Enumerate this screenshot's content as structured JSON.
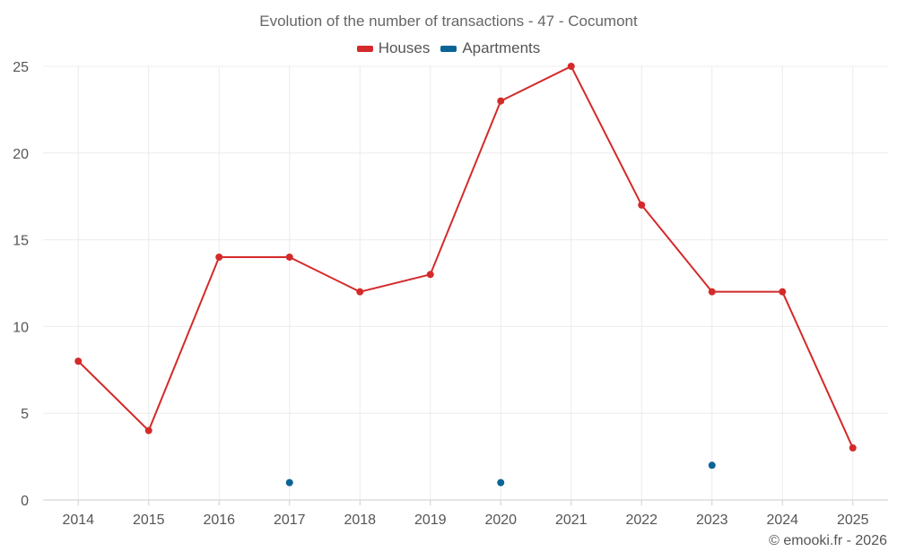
{
  "chart_data": {
    "type": "line",
    "title": "Evolution of the number of transactions - 47 - Cocumont",
    "categories": [
      "2014",
      "2015",
      "2016",
      "2017",
      "2018",
      "2019",
      "2020",
      "2021",
      "2022",
      "2023",
      "2024",
      "2025"
    ],
    "series": [
      {
        "name": "Houses",
        "color": "#d42a2a",
        "values": [
          8,
          4,
          14,
          14,
          12,
          13,
          23,
          25,
          17,
          12,
          12,
          3
        ]
      },
      {
        "name": "Apartments",
        "color": "#0a6496",
        "values": [
          null,
          null,
          null,
          1,
          null,
          null,
          1,
          null,
          null,
          2,
          null,
          null
        ]
      }
    ],
    "yticks": [
      0,
      5,
      10,
      15,
      20,
      25
    ],
    "ylim": [
      0,
      25
    ],
    "grid": true,
    "legend_position": "top-center",
    "xlabel": "",
    "ylabel": ""
  },
  "footer": {
    "credit": "© emooki.fr - 2026"
  }
}
